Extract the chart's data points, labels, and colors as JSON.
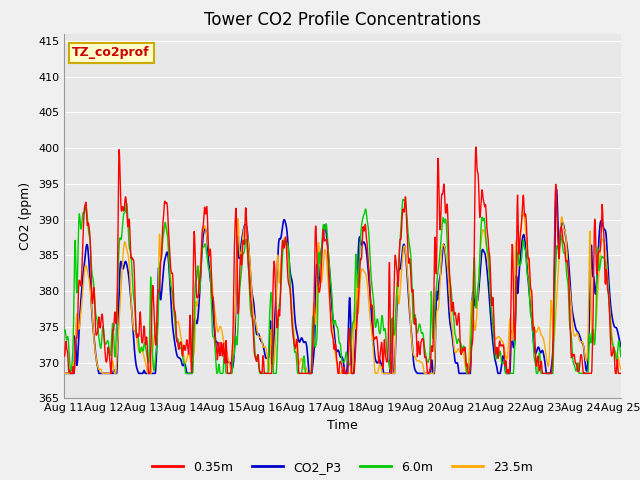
{
  "title": "Tower CO2 Profile Concentrations",
  "xlabel": "Time",
  "ylabel": "CO2 (ppm)",
  "ylim": [
    365,
    416
  ],
  "yticks": [
    365,
    370,
    375,
    380,
    385,
    390,
    395,
    400,
    405,
    410,
    415
  ],
  "xtick_labels": [
    "Aug 11",
    "Aug 12",
    "Aug 13",
    "Aug 14",
    "Aug 15",
    "Aug 16",
    "Aug 17",
    "Aug 18",
    "Aug 19",
    "Aug 20",
    "Aug 21",
    "Aug 22",
    "Aug 23",
    "Aug 24",
    "Aug 25"
  ],
  "series_colors": [
    "#ff0000",
    "#0000cc",
    "#00cc00",
    "#ffaa00"
  ],
  "series_labels": [
    "0.35m",
    "CO2_P3",
    "6.0m",
    "23.5m"
  ],
  "series_linewidths": [
    1.0,
    1.2,
    1.0,
    1.0
  ],
  "annotation_text": "TZ_co2prof",
  "annotation_box_facecolor": "#ffffcc",
  "annotation_box_edgecolor": "#ccaa00",
  "annotation_text_color": "#cc0000",
  "fig_bg_color": "#f0f0f0",
  "plot_bg_color": "#e8e8e8",
  "grid_color": "#ffffff",
  "title_fontsize": 12,
  "axis_label_fontsize": 9,
  "tick_fontsize": 8,
  "legend_fontsize": 9
}
